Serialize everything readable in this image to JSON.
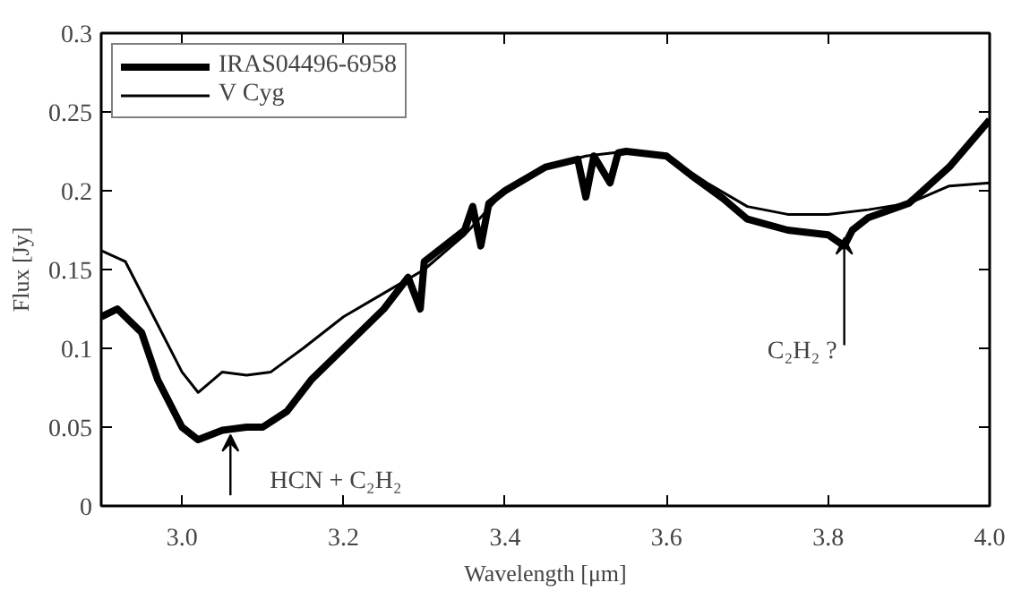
{
  "chart_data": {
    "type": "line",
    "xlabel": "Wavelength [μm]",
    "ylabel": "Flux [Jy]",
    "xlim": [
      2.9,
      4.0
    ],
    "ylim": [
      0,
      0.3
    ],
    "xticks": [
      {
        "value": 3.0,
        "label": "3.0"
      },
      {
        "value": 3.2,
        "label": "3.2"
      },
      {
        "value": 3.4,
        "label": "3.4"
      },
      {
        "value": 3.6,
        "label": "3.6"
      },
      {
        "value": 3.8,
        "label": "3.8"
      },
      {
        "value": 4.0,
        "label": "4.0"
      }
    ],
    "yticks": [
      0,
      0.05,
      0.1,
      0.15,
      0.2,
      0.25,
      0.3
    ],
    "grid": false,
    "legend": "top left",
    "marker": "none",
    "line_style": "solid",
    "series": [
      {
        "name": "IRAS04496-6958",
        "color": "#000000",
        "x": [
          2.9,
          2.92,
          2.95,
          2.97,
          3.0,
          3.02,
          3.05,
          3.08,
          3.1,
          3.13,
          3.16,
          3.2,
          3.25,
          3.28,
          3.295,
          3.3,
          3.35,
          3.36,
          3.37,
          3.38,
          3.4,
          3.45,
          3.49,
          3.5,
          3.51,
          3.53,
          3.54,
          3.55,
          3.6,
          3.63,
          3.67,
          3.7,
          3.75,
          3.8,
          3.82,
          3.83,
          3.85,
          3.9,
          3.95,
          4.0
        ],
        "values": [
          0.12,
          0.125,
          0.11,
          0.08,
          0.05,
          0.042,
          0.048,
          0.05,
          0.05,
          0.06,
          0.08,
          0.1,
          0.125,
          0.145,
          0.125,
          0.155,
          0.175,
          0.19,
          0.165,
          0.192,
          0.2,
          0.215,
          0.22,
          0.196,
          0.222,
          0.205,
          0.224,
          0.225,
          0.222,
          0.21,
          0.195,
          0.182,
          0.175,
          0.172,
          0.165,
          0.175,
          0.183,
          0.192,
          0.215,
          0.245
        ]
      },
      {
        "name": "V Cyg",
        "color": "#000000",
        "x": [
          2.9,
          2.93,
          2.96,
          3.0,
          3.02,
          3.05,
          3.08,
          3.11,
          3.15,
          3.2,
          3.25,
          3.3,
          3.35,
          3.4,
          3.45,
          3.5,
          3.55,
          3.6,
          3.65,
          3.7,
          3.75,
          3.8,
          3.85,
          3.9,
          3.95,
          4.0
        ],
        "values": [
          0.162,
          0.155,
          0.125,
          0.085,
          0.072,
          0.085,
          0.083,
          0.085,
          0.1,
          0.12,
          0.135,
          0.15,
          0.172,
          0.2,
          0.215,
          0.222,
          0.225,
          0.222,
          0.205,
          0.19,
          0.185,
          0.185,
          0.188,
          0.192,
          0.203,
          0.205
        ]
      }
    ],
    "annotations": [
      {
        "text": "HCN + C₂H₂",
        "x": 3.06,
        "y": 0.045
      },
      {
        "text": "C₂H₂ ?",
        "x": 3.82,
        "y": 0.17
      }
    ]
  }
}
